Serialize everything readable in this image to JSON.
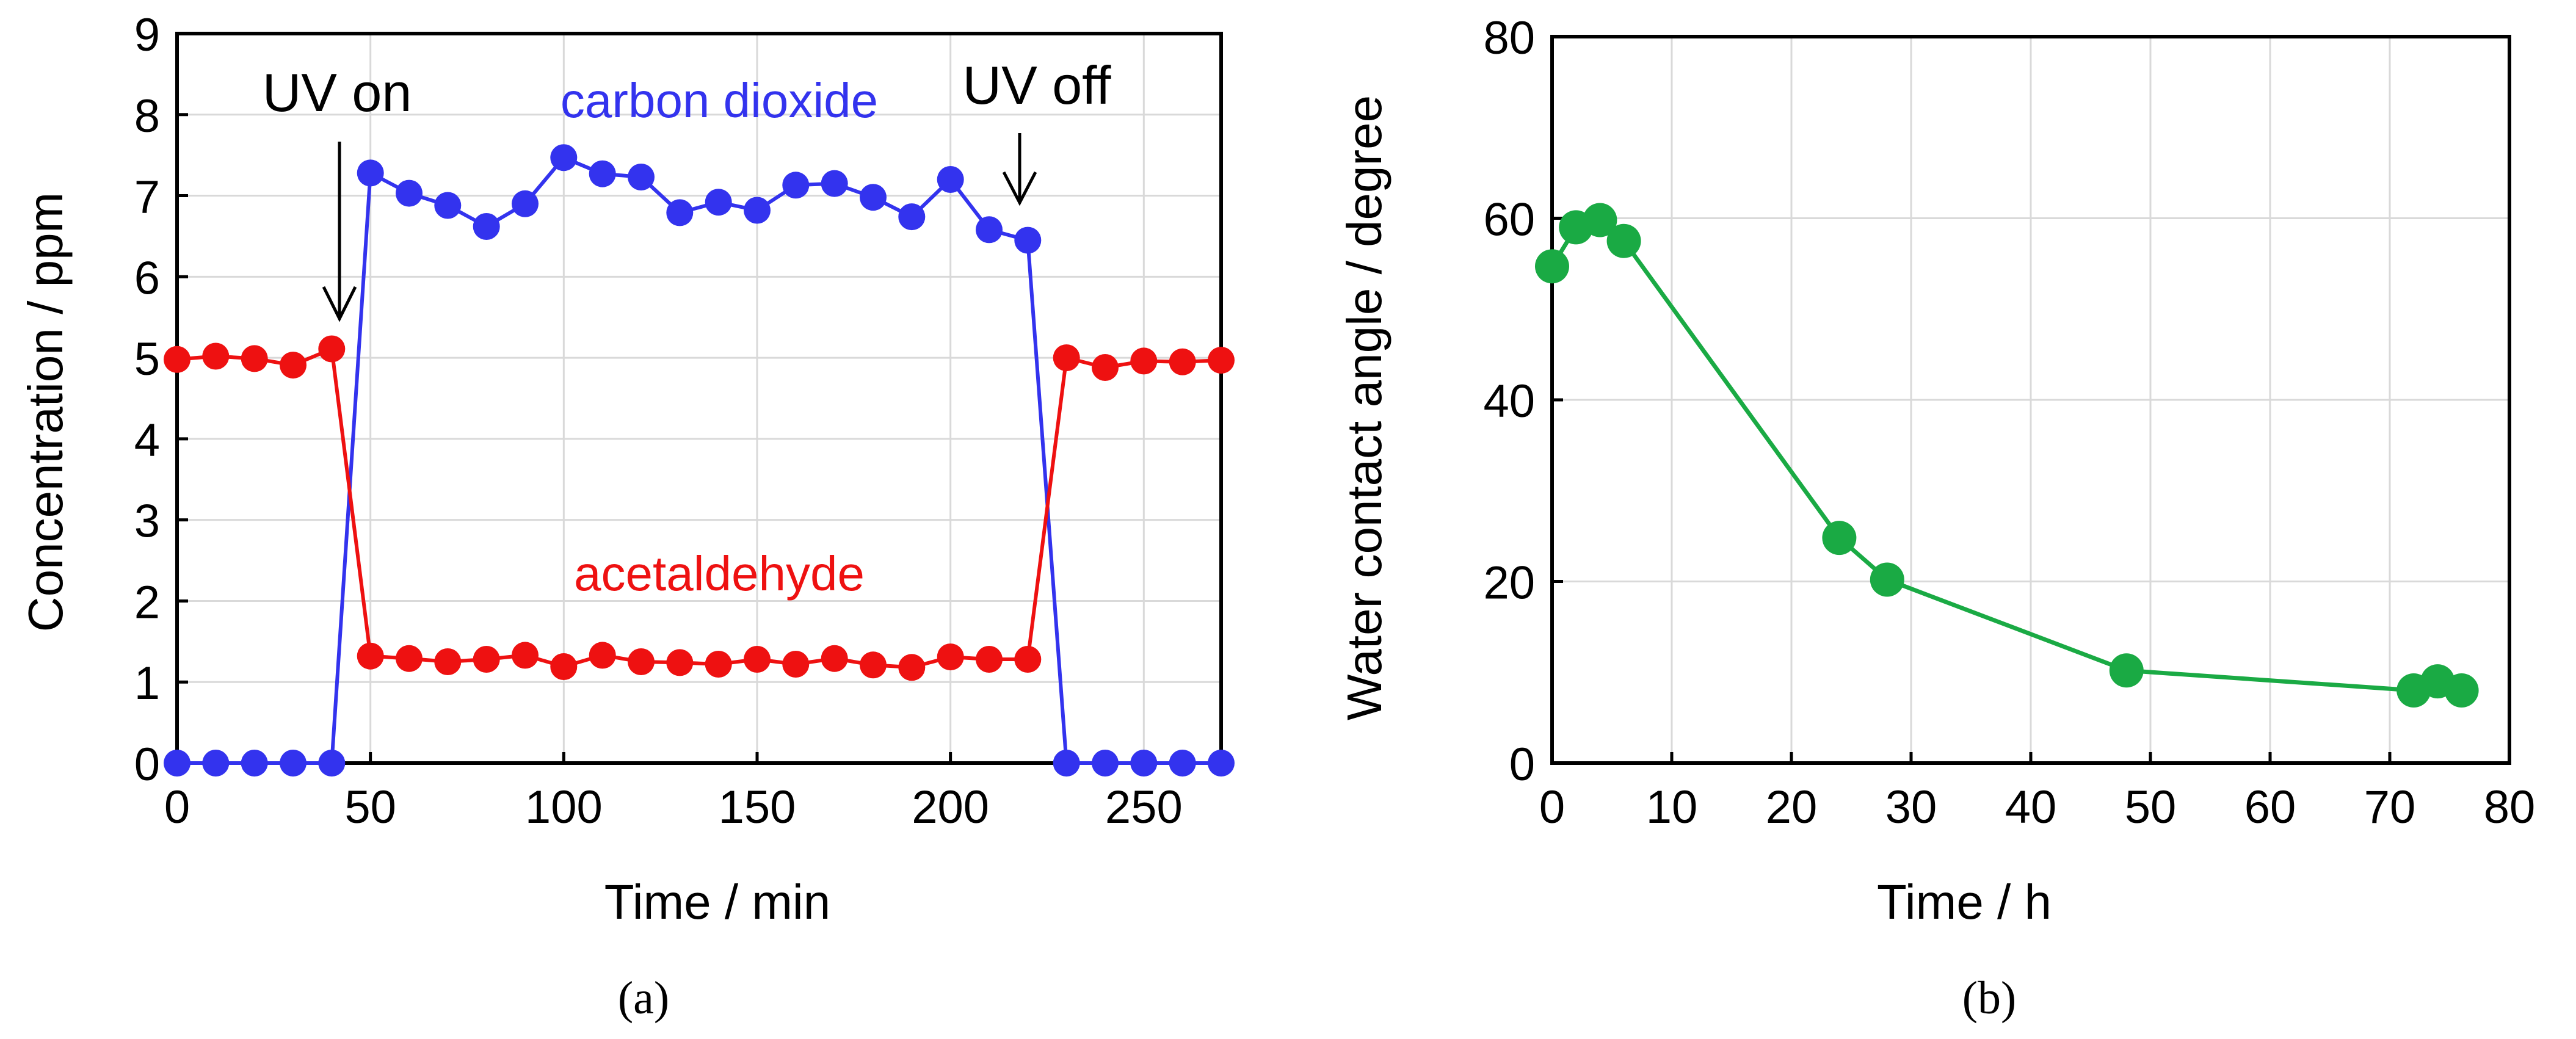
{
  "chart_data": [
    {
      "id": "a",
      "type": "line",
      "panel_label": "(a)",
      "xlabel": "Time / min",
      "ylabel": "Concentration / ppm",
      "xlim": [
        0,
        270
      ],
      "ylim": [
        0,
        9
      ],
      "xticks": [
        0,
        50,
        100,
        150,
        200,
        250
      ],
      "yticks": [
        0,
        1,
        2,
        3,
        4,
        5,
        6,
        7,
        8,
        9
      ],
      "grid": true,
      "series": [
        {
          "name": "carbon dioxide",
          "color": "#3333ee",
          "x": [
            0,
            10,
            20,
            30,
            40,
            50,
            60,
            70,
            80,
            90,
            100,
            110,
            120,
            130,
            140,
            150,
            160,
            170,
            180,
            190,
            200,
            210,
            220,
            230,
            240,
            250,
            260,
            270
          ],
          "y": [
            0,
            0,
            0,
            0,
            0,
            7.28,
            7.03,
            6.88,
            6.62,
            6.9,
            7.47,
            7.27,
            7.23,
            6.79,
            6.92,
            6.82,
            7.13,
            7.15,
            6.98,
            6.74,
            7.2,
            6.58,
            6.45,
            0,
            0,
            0,
            0,
            0
          ]
        },
        {
          "name": "acetaldehyde",
          "color": "#ee1111",
          "x": [
            0,
            10,
            20,
            30,
            40,
            50,
            60,
            70,
            80,
            90,
            100,
            110,
            120,
            130,
            140,
            150,
            160,
            170,
            180,
            190,
            200,
            210,
            220,
            230,
            240,
            250,
            260,
            270
          ],
          "y": [
            4.98,
            5.02,
            4.99,
            4.91,
            5.11,
            1.32,
            1.29,
            1.25,
            1.28,
            1.33,
            1.19,
            1.33,
            1.25,
            1.24,
            1.22,
            1.28,
            1.22,
            1.29,
            1.21,
            1.18,
            1.31,
            1.28,
            1.28,
            5.0,
            4.88,
            4.96,
            4.95,
            4.97
          ]
        }
      ],
      "annotations": [
        {
          "text": "UV on",
          "arrow_to": [
            41,
            5.4
          ]
        },
        {
          "text": "UV off",
          "arrow_to": [
            222,
            6.9
          ]
        },
        {
          "text": "carbon dioxide",
          "color": "#3333ee"
        },
        {
          "text": "acetaldehyde",
          "color": "#ee1111"
        }
      ]
    },
    {
      "id": "b",
      "type": "line",
      "panel_label": "(b)",
      "xlabel": "Time / h",
      "ylabel": "Water contact angle / degree",
      "xlim": [
        0,
        80
      ],
      "ylim": [
        0,
        80
      ],
      "xticks": [
        0,
        10,
        20,
        30,
        40,
        50,
        60,
        70,
        80
      ],
      "yticks": [
        0,
        20,
        40,
        60,
        80
      ],
      "grid": true,
      "series": [
        {
          "name": "water contact angle",
          "color": "#1aaa44",
          "x": [
            0,
            2,
            4,
            6,
            24,
            28,
            48,
            72,
            74,
            76
          ],
          "y": [
            54.7,
            59.0,
            59.8,
            57.5,
            24.8,
            20.2,
            10.2,
            8.0,
            9.0,
            8.0
          ]
        }
      ]
    }
  ]
}
